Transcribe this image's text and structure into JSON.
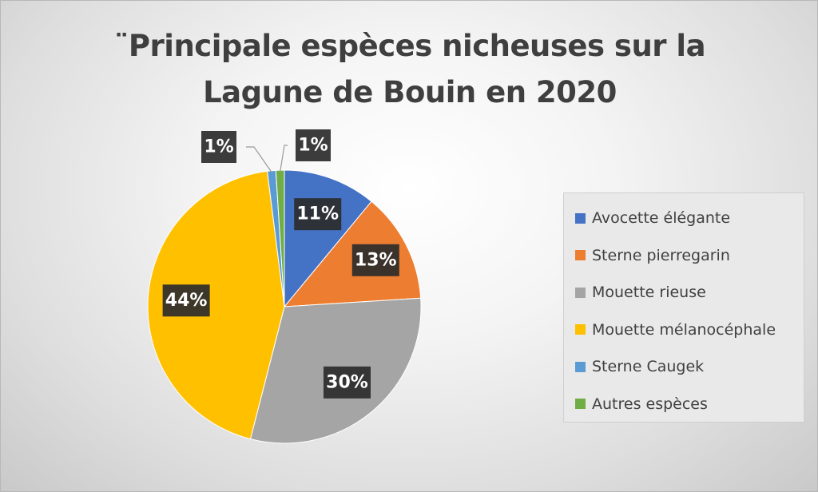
{
  "title": {
    "line1": "¨Principale espèces nicheuses sur la",
    "line2": "Lagune de Bouin en 2020"
  },
  "chart_data": {
    "type": "pie",
    "title": "¨Principale espèces nicheuses sur la Lagune de Bouin en 2020",
    "legend_position": "right",
    "slices": [
      {
        "name": "Avocette élégante",
        "value": 11,
        "label": "11%",
        "color": "#4472c4"
      },
      {
        "name": "Sterne pierregarin",
        "value": 13,
        "label": "13%",
        "color": "#ed7d31"
      },
      {
        "name": "Mouette rieuse",
        "value": 30,
        "label": "30%",
        "color": "#a5a5a5"
      },
      {
        "name": "Mouette mélanocéphale",
        "value": 44,
        "label": "44%",
        "color": "#ffc000"
      },
      {
        "name": "Sterne Caugek",
        "value": 1,
        "label": "1%",
        "color": "#5b9bd5"
      },
      {
        "name": "Autres espèces",
        "value": 1,
        "label": "1%",
        "color": "#70ad47"
      }
    ]
  }
}
